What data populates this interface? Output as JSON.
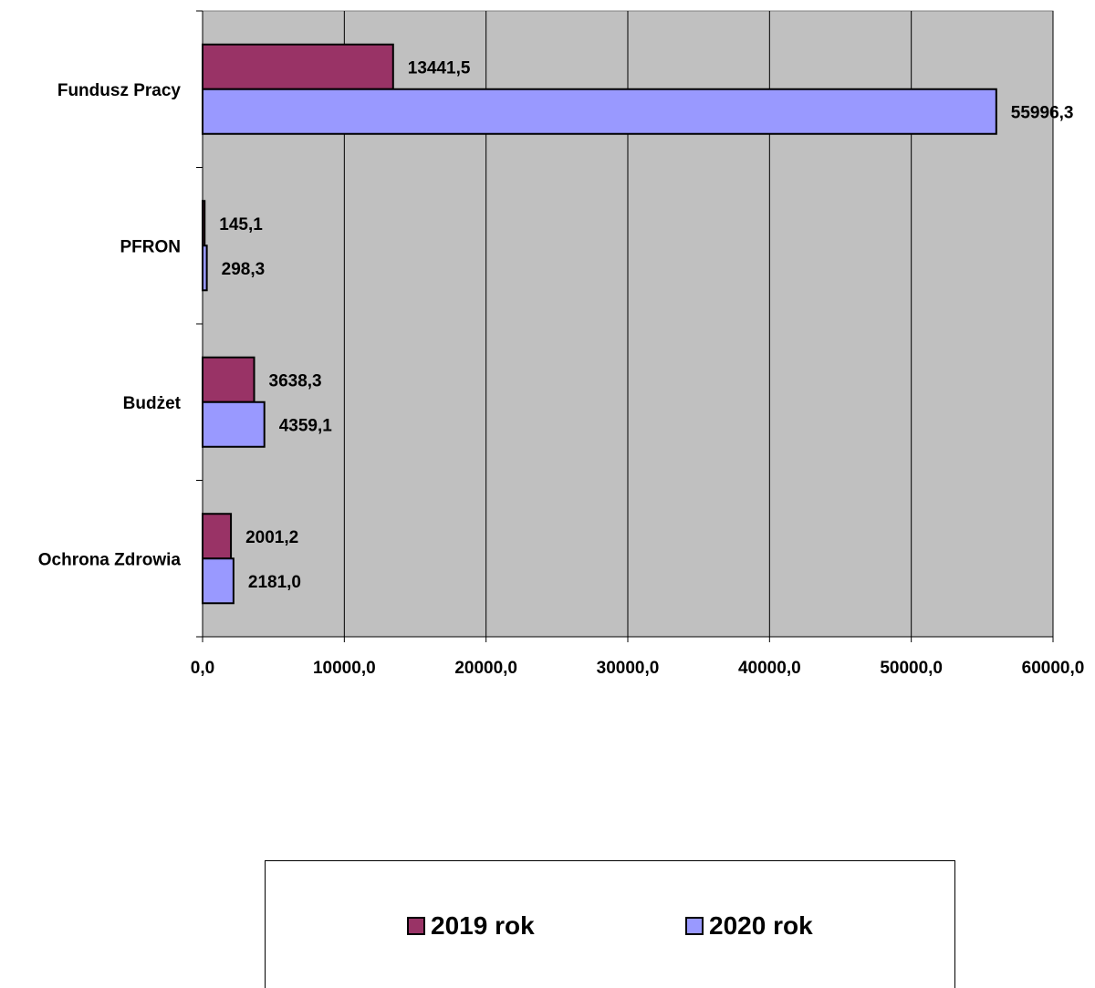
{
  "chart_data": {
    "type": "bar",
    "orientation": "horizontal",
    "categories": [
      "Fundusz Pracy",
      "PFRON",
      "Budżet",
      "Ochrona Zdrowia"
    ],
    "series": [
      {
        "name": "2019 rok",
        "color": "#993366",
        "values": [
          13441.5,
          145.1,
          3638.3,
          2001.2
        ],
        "labels": [
          "13441,5",
          "145,1",
          "3638,3",
          "2001,2"
        ]
      },
      {
        "name": "2020 rok",
        "color": "#9999ff",
        "values": [
          55996.3,
          298.3,
          4359.1,
          2181.0
        ],
        "labels": [
          "55996,3",
          "298,3",
          "4359,1",
          "2181,0"
        ]
      }
    ],
    "xlim": [
      0,
      60000
    ],
    "xticks": [
      0,
      10000,
      20000,
      30000,
      40000,
      50000,
      60000
    ],
    "xtick_labels": [
      "0,0",
      "10000,0",
      "20000,0",
      "30000,0",
      "40000,0",
      "50000,0",
      "60000,0"
    ],
    "plot_background": "#c0c0c0",
    "grid": "vertical",
    "legend_position": "bottom"
  }
}
